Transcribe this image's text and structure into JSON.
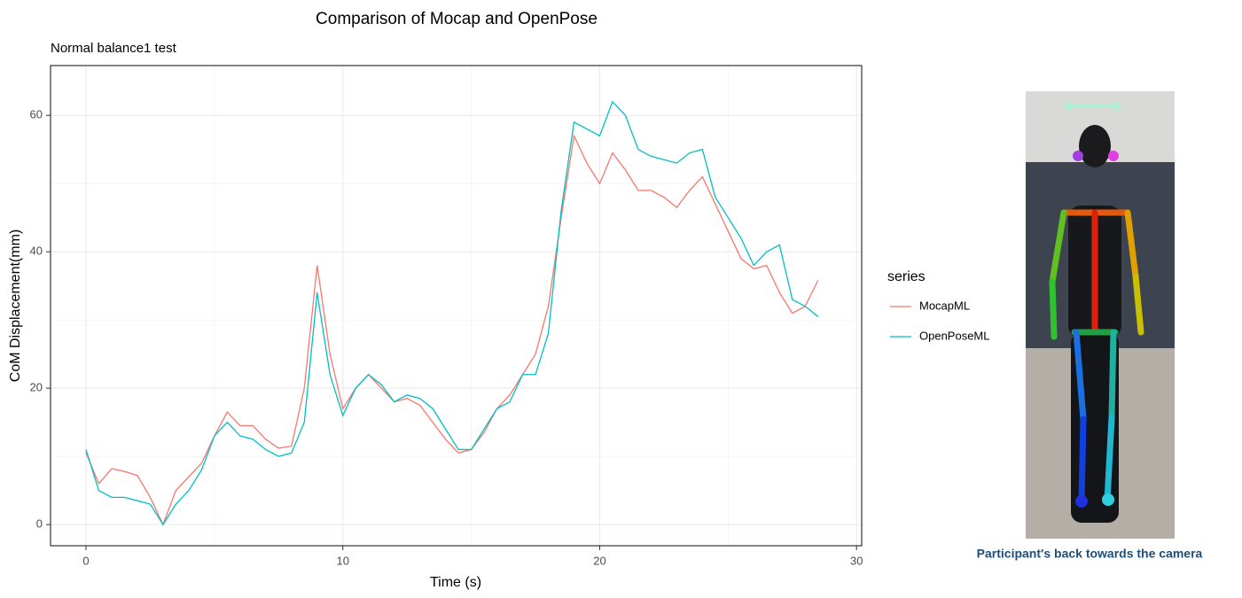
{
  "chart_data": {
    "type": "line",
    "title": "Comparison of Mocap and OpenPose",
    "subtitle": "Normal balance1 test",
    "x_label": "Time (s)",
    "y_label": "CoM Displacement(mm)",
    "legend_title": "series",
    "legend_position": "right",
    "xlim": [
      -1.38,
      30.2
    ],
    "ylim": [
      -3.1,
      67.3
    ],
    "xticks": [
      0,
      10,
      20,
      30
    ],
    "yticks": [
      0,
      20,
      40,
      60
    ],
    "x_minor_grid": [
      5,
      15,
      25
    ],
    "y_minor_grid": [
      10,
      30,
      50
    ],
    "grid": true,
    "x": [
      0,
      0.5,
      1,
      1.5,
      2,
      2.5,
      3,
      3.5,
      4,
      4.5,
      5,
      5.5,
      6,
      6.5,
      7,
      7.5,
      8,
      8.5,
      9,
      9.5,
      10,
      10.5,
      11,
      11.5,
      12,
      12.5,
      13,
      13.5,
      14,
      14.5,
      15,
      15.5,
      16,
      16.5,
      17,
      17.5,
      18,
      18.5,
      19,
      19.5,
      20,
      20.5,
      21,
      21.5,
      22,
      22.5,
      23,
      23.5,
      24,
      24.5,
      25,
      25.5,
      26,
      26.5,
      27,
      27.5,
      28,
      28.5
    ],
    "series": [
      {
        "name": "MocapML",
        "color": "#f8766d",
        "values": [
          10.5,
          6,
          8.2,
          7.8,
          7.2,
          4,
          0,
          5,
          7,
          9,
          13,
          16.5,
          14.5,
          14.5,
          12.5,
          11.2,
          11.5,
          20,
          38,
          25,
          17,
          20,
          22,
          20,
          18,
          18.5,
          17.5,
          15,
          12.5,
          10.5,
          11,
          13.5,
          17,
          19,
          22,
          25,
          32,
          45,
          57,
          53,
          50,
          54.5,
          52,
          49,
          49,
          48,
          46.5,
          49,
          51,
          47,
          43,
          39,
          37.5,
          38,
          34,
          31,
          32,
          35.8
        ]
      },
      {
        "name": "OpenPoseML",
        "color": "#00bfc4",
        "values": [
          11,
          5,
          4,
          4,
          3.5,
          3,
          0,
          3,
          5,
          8,
          13,
          15,
          13,
          12.5,
          11,
          10,
          10.5,
          15,
          34,
          22,
          16,
          20,
          22,
          20.5,
          18,
          19,
          18.5,
          17,
          14,
          11,
          11,
          14,
          17,
          18,
          22,
          22,
          28,
          46,
          59,
          58,
          57,
          62,
          60,
          55,
          54,
          53.5,
          53,
          54.5,
          55,
          48,
          45,
          42,
          38,
          40,
          41,
          33,
          32,
          30.5
        ]
      }
    ]
  },
  "figure": {
    "caption": "Participant's back towards the camera"
  }
}
